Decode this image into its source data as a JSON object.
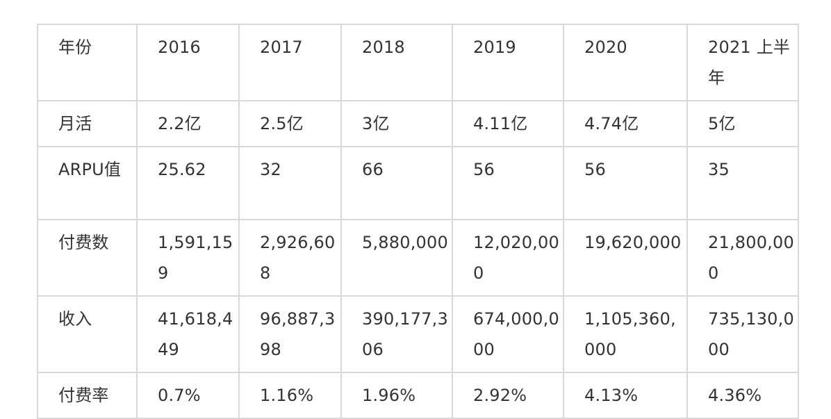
{
  "table": {
    "rows": [
      [
        "年份",
        "2016",
        "2017",
        "2018",
        "2019",
        "2020",
        "2021 上半年"
      ],
      [
        "月活",
        "2.2亿",
        "2.5亿",
        "3亿",
        "4.11亿",
        "4.74亿",
        "5亿"
      ],
      [
        "ARPU值",
        "25.62",
        "32",
        "66",
        "56",
        "56",
        "35"
      ],
      [
        "付费数",
        "1,591,159",
        "2,926,608",
        "5,880,000",
        "12,020,000",
        "19,620,000",
        "21,800,000"
      ],
      [
        "收入",
        "41,618,449",
        "96,887,398",
        "390,177,306",
        "674,000,000",
        "1,105,360,000",
        "735,130,000"
      ],
      [
        "付费率",
        "0.7%",
        "1.16%",
        "1.96%",
        "2.92%",
        "4.13%",
        "4.36%"
      ]
    ]
  }
}
